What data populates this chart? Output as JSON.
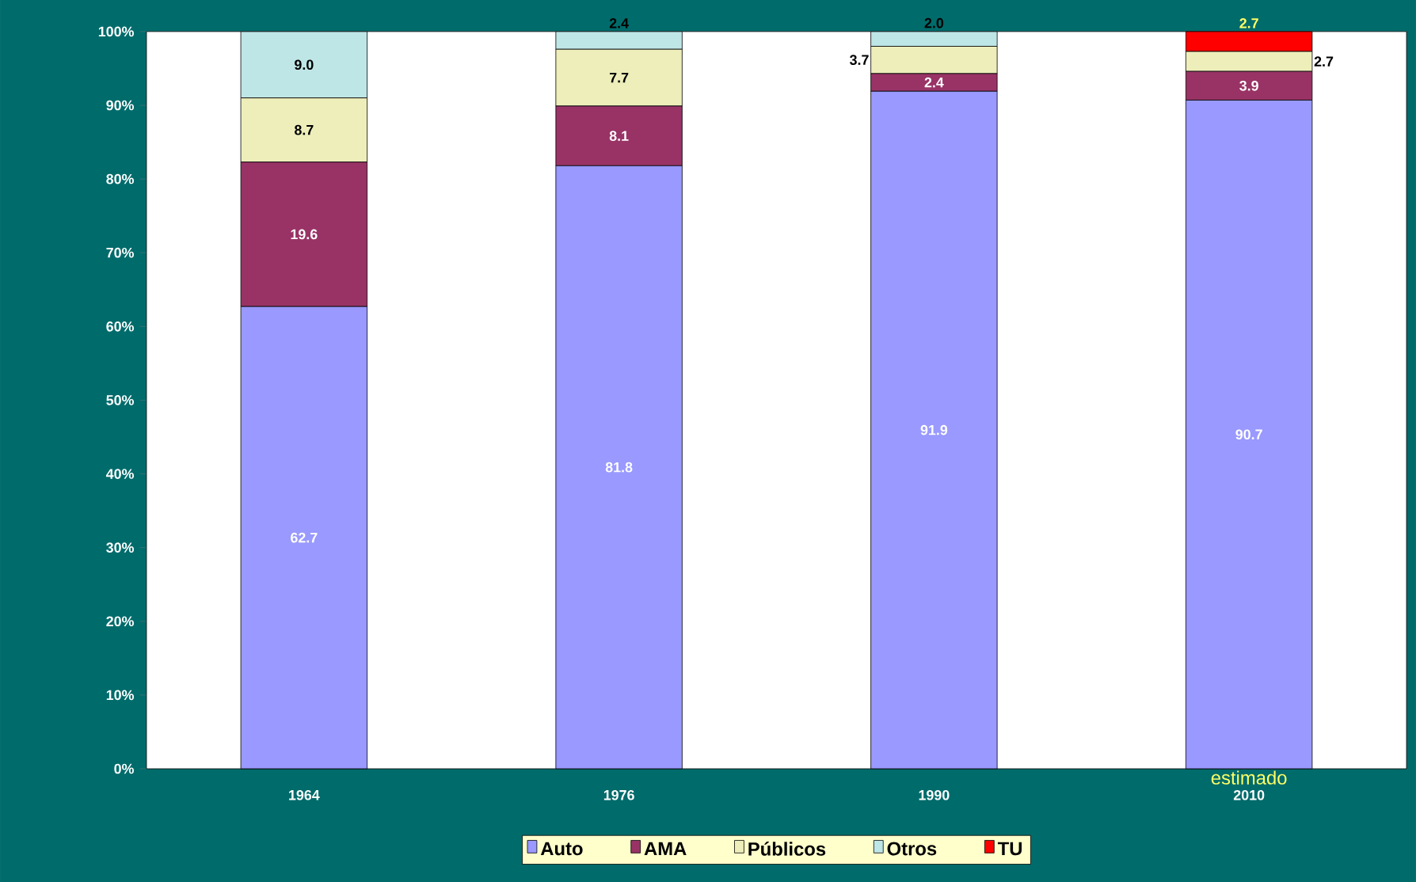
{
  "chart_data": {
    "type": "bar",
    "stacked": true,
    "categories": [
      "1964",
      "1976",
      "1990",
      "2010"
    ],
    "series": [
      {
        "name": "Auto",
        "color": "#9999ff",
        "values": [
          62.7,
          81.8,
          91.9,
          90.7
        ],
        "value_labels": [
          "62.7",
          "81.8",
          "91.9",
          "90.7"
        ]
      },
      {
        "name": "AMA",
        "color": "#993366",
        "values": [
          19.6,
          8.1,
          2.4,
          3.9
        ],
        "value_labels": [
          "19.6",
          "8.1",
          "2.4",
          "3.9"
        ]
      },
      {
        "name": "Públicos",
        "color": "#eeeebb",
        "values": [
          8.7,
          7.7,
          3.7,
          2.7
        ],
        "value_labels": [
          "8.7",
          "7.7",
          "3.7",
          "2.7"
        ]
      },
      {
        "name": "Otros",
        "color": "#bfe6e6",
        "values": [
          9.0,
          2.4,
          2.0,
          0
        ],
        "value_labels": [
          "9.0",
          "2.4",
          "2.0",
          null
        ]
      },
      {
        "name": "TU",
        "color": "#ff0000",
        "values": [
          0,
          0,
          0,
          2.7
        ],
        "value_labels": [
          null,
          null,
          null,
          "2.7"
        ]
      }
    ],
    "ylim": [
      0,
      100
    ],
    "yticks": [
      {
        "value": 0,
        "label": "0%"
      },
      {
        "value": 10,
        "label": "10%"
      },
      {
        "value": 20,
        "label": "20%"
      },
      {
        "value": 30,
        "label": "30%"
      },
      {
        "value": 40,
        "label": "40%"
      },
      {
        "value": 50,
        "label": "50%"
      },
      {
        "value": 60,
        "label": "60%"
      },
      {
        "value": 70,
        "label": "70%"
      },
      {
        "value": 80,
        "label": "80%"
      },
      {
        "value": 90,
        "label": "90%"
      },
      {
        "value": 100,
        "label": "100%"
      }
    ],
    "grid": false,
    "legend": "bottom",
    "annotations": [
      "estimado"
    ]
  }
}
